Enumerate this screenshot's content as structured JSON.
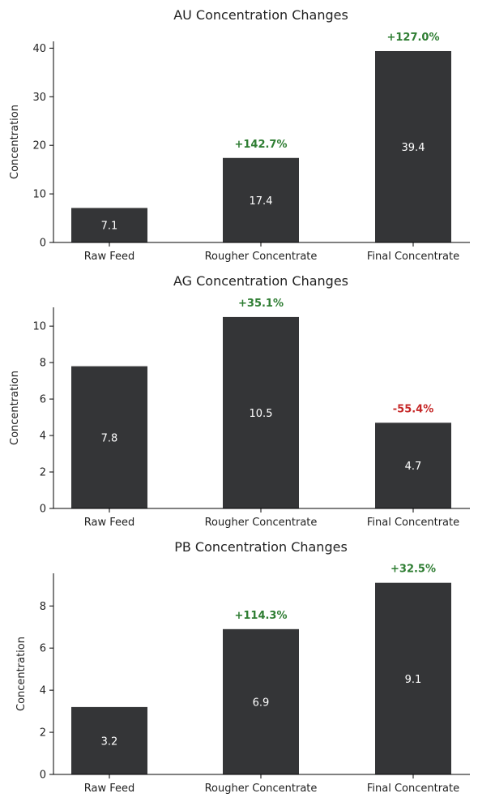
{
  "colors": {
    "bar": "#343537",
    "increase": "#2e7d32",
    "decrease": "#c62828",
    "axis": "#000000"
  },
  "chart_data": [
    {
      "type": "bar",
      "title": "AU Concentration Changes",
      "xlabel": "",
      "ylabel": "Concentration",
      "categories": [
        "Raw Feed",
        "Rougher Concentrate",
        "Final Concentrate"
      ],
      "values": [
        7.1,
        17.4,
        39.4
      ],
      "value_labels": [
        "7.1",
        "17.4",
        "39.4"
      ],
      "change_labels": [
        "",
        "+142.7%",
        "+127.0%"
      ],
      "change_direction": [
        "",
        "increase",
        "increase"
      ],
      "ylim": [
        0,
        41.4
      ],
      "yticks": [
        0,
        10,
        20,
        30,
        40
      ],
      "grid": false
    },
    {
      "type": "bar",
      "title": "AG Concentration Changes",
      "xlabel": "",
      "ylabel": "Concentration",
      "categories": [
        "Raw Feed",
        "Rougher Concentrate",
        "Final Concentrate"
      ],
      "values": [
        7.8,
        10.5,
        4.7
      ],
      "value_labels": [
        "7.8",
        "10.5",
        "4.7"
      ],
      "change_labels": [
        "",
        "+35.1%",
        "-55.4%"
      ],
      "change_direction": [
        "",
        "increase",
        "decrease"
      ],
      "ylim": [
        0,
        11.03
      ],
      "yticks": [
        0,
        2,
        4,
        6,
        8,
        10
      ],
      "grid": false
    },
    {
      "type": "bar",
      "title": "PB Concentration Changes",
      "xlabel": "",
      "ylabel": "Concentration",
      "categories": [
        "Raw Feed",
        "Rougher Concentrate",
        "Final Concentrate"
      ],
      "values": [
        3.2,
        6.9,
        9.1
      ],
      "value_labels": [
        "3.2",
        "6.9",
        "9.1"
      ],
      "change_labels": [
        "",
        "+114.3%",
        "+32.5%"
      ],
      "change_direction": [
        "",
        "increase",
        "increase"
      ],
      "ylim": [
        0,
        9.55
      ],
      "yticks": [
        0,
        2,
        4,
        6,
        8
      ],
      "grid": false
    }
  ]
}
